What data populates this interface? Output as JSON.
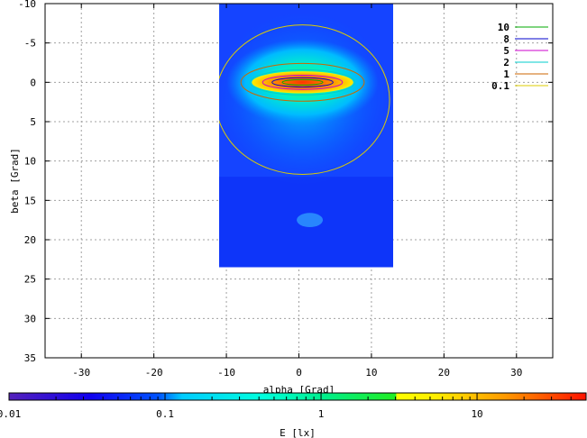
{
  "chart_data": {
    "type": "heatmap",
    "xlabel": "alpha [Grad]",
    "ylabel": "beta [Grad]",
    "xlim": [
      -35,
      35
    ],
    "ylim": [
      -10,
      35
    ],
    "y_inverted": true,
    "x_ticks": [
      -30,
      -20,
      -10,
      0,
      10,
      20,
      30
    ],
    "y_ticks": [
      -10,
      -5,
      0,
      5,
      10,
      15,
      20,
      25,
      30,
      35
    ],
    "grid": true,
    "data_extent": {
      "alpha": [
        -11,
        13
      ],
      "beta": [
        -10,
        23.5
      ]
    },
    "contours": [
      {
        "level": "10",
        "color": "#00aa00"
      },
      {
        "level": "8",
        "color": "#0000cc"
      },
      {
        "level": "5",
        "color": "#cc00cc"
      },
      {
        "level": "2",
        "color": "#00cccc"
      },
      {
        "level": "1",
        "color": "#cc6600"
      },
      {
        "level": "0.1",
        "color": "#ddcc00"
      }
    ],
    "colorbar": {
      "label": "E [lx]",
      "scale": "log",
      "range": [
        0.01,
        50
      ],
      "ticks": [
        "0.01",
        "0.1",
        "1",
        "10"
      ]
    }
  }
}
